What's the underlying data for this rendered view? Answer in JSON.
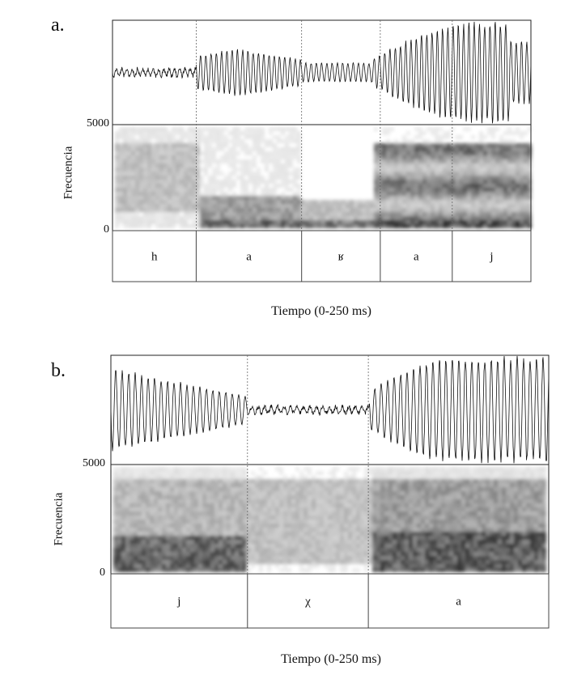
{
  "chart_data": [
    {
      "type": "spectrogram",
      "panel": "a.",
      "ylabel": "Frecuencia",
      "yticks": [
        "5000",
        "0"
      ],
      "ylim": [
        0,
        5000
      ],
      "xlabel": "Tiempo (0-250 ms)",
      "xlim": [
        0,
        250
      ],
      "segments": [
        {
          "label": "h",
          "start": 0,
          "end": 50
        },
        {
          "label": "a",
          "start": 50,
          "end": 113
        },
        {
          "label": "ʁ",
          "start": 113,
          "end": 160
        },
        {
          "label": "a",
          "start": 160,
          "end": 203
        },
        {
          "label": "j",
          "start": 203,
          "end": 250
        }
      ]
    },
    {
      "type": "spectrogram",
      "panel": "b.",
      "ylabel": "Frecuencia",
      "yticks": [
        "5000",
        "0"
      ],
      "ylim": [
        0,
        5000
      ],
      "xlabel": "Tiempo (0-250 ms)",
      "xlim": [
        0,
        250
      ],
      "segments": [
        {
          "label": "j",
          "start": 0,
          "end": 78
        },
        {
          "label": "χ",
          "start": 78,
          "end": 147
        },
        {
          "label": "a",
          "start": 147,
          "end": 250
        }
      ]
    }
  ]
}
